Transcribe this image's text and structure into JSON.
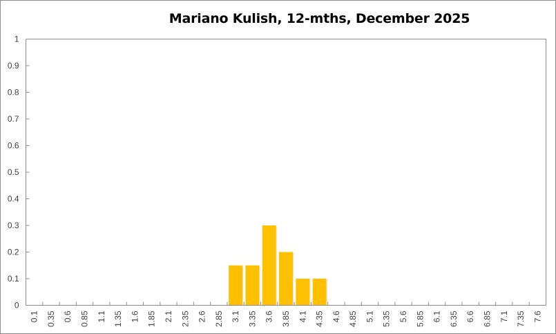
{
  "chart_data": {
    "type": "bar",
    "title": "Mariano Kulish, 12-mths, December 2025",
    "xlabel": "",
    "ylabel": "",
    "ylim": [
      0,
      1
    ],
    "yticks": [
      "0",
      "0.1",
      "0.2",
      "0.3",
      "0.4",
      "0.5",
      "0.6",
      "0.7",
      "0.8",
      "0.9",
      "1"
    ],
    "grid": false,
    "legend": null,
    "bar_color": "#FFC000",
    "categories": [
      "0.1",
      "0.35",
      "0.6",
      "0.85",
      "1.1",
      "1.35",
      "1.6",
      "1.85",
      "2.1",
      "2.35",
      "2.6",
      "2.85",
      "3.1",
      "3.35",
      "3.6",
      "3.85",
      "4.1",
      "4.35",
      "4.6",
      "4.85",
      "5.1",
      "5.35",
      "5.6",
      "5.85",
      "6.1",
      "6.35",
      "6.6",
      "6.85",
      "7.1",
      "7.35",
      "7.6"
    ],
    "values": [
      0,
      0,
      0,
      0,
      0,
      0,
      0,
      0,
      0,
      0,
      0,
      0,
      0.15,
      0.15,
      0.3,
      0.2,
      0.1,
      0.1,
      0,
      0,
      0,
      0,
      0,
      0,
      0,
      0,
      0,
      0,
      0,
      0,
      0
    ]
  }
}
